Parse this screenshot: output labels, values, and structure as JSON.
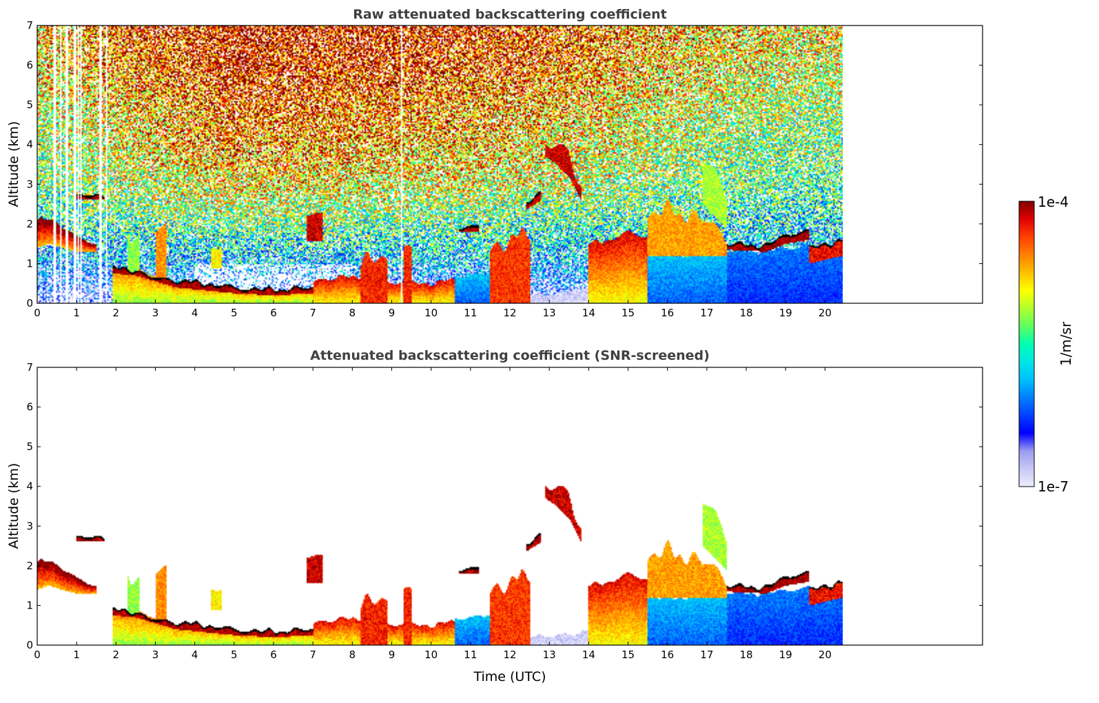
{
  "colors": {
    "colormap": [
      "#ececff",
      "#c8c8f5",
      "#9b9bf0",
      "#0000ff",
      "#0040ff",
      "#0080ff",
      "#00c0ff",
      "#00e5e5",
      "#00ffb0",
      "#60ff60",
      "#b0ff30",
      "#ffff00",
      "#ffc000",
      "#ff8000",
      "#ff4000",
      "#e00000",
      "#800000"
    ],
    "axis": "#000000",
    "title": "#404040",
    "black_layer": "#000000"
  },
  "chart_data": [
    {
      "type": "heatmap",
      "title": "Raw attenuated backscattering coefficient",
      "xlabel": "",
      "ylabel": "Altitude (km)",
      "xlim": [
        0,
        24
      ],
      "ylim": [
        0,
        7
      ],
      "xticks": [
        0,
        1,
        2,
        3,
        4,
        5,
        6,
        7,
        8,
        9,
        10,
        11,
        12,
        13,
        14,
        15,
        16,
        17,
        18,
        19,
        20
      ],
      "yticks": [
        0,
        1,
        2,
        3,
        4,
        5,
        6,
        7
      ],
      "data_extent_x": [
        0,
        20.45
      ],
      "noise_field": {
        "description": "pixel-level noise increasing with altitude",
        "intensity_by_altitude_km": [
          [
            0,
            0.05
          ],
          [
            1,
            0.3
          ],
          [
            2,
            0.45
          ],
          [
            3,
            0.55
          ],
          [
            4,
            0.6
          ],
          [
            5,
            0.65
          ],
          [
            6,
            0.72
          ],
          [
            7,
            0.75
          ]
        ],
        "upper_intensity_boost_by_time": [
          [
            0,
            0.0
          ],
          [
            2,
            0.1
          ],
          [
            5,
            0.22
          ],
          [
            8,
            0.2
          ],
          [
            12,
            0.15
          ],
          [
            14,
            0.1
          ],
          [
            17,
            0.0
          ],
          [
            20.45,
            -0.05
          ]
        ]
      },
      "features": [
        {
          "kind": "boundary_layer",
          "x": [
            0,
            0.3,
            0.6,
            1.0,
            1.5
          ],
          "y_low": [
            1.4,
            1.5,
            1.4,
            1.3,
            1.3
          ],
          "y_high": [
            2.1,
            2.1,
            2.0,
            1.7,
            1.5
          ],
          "intensity": 0.95
        },
        {
          "kind": "cloud_layer",
          "x": [
            1.0,
            1.7
          ],
          "y_low": [
            2.6,
            2.6
          ],
          "y_high": [
            2.75,
            2.75
          ],
          "intensity": 0.97
        },
        {
          "kind": "boundary_layer",
          "x": [
            1.9,
            2.5,
            3.0,
            3.5,
            4.0,
            5.0,
            6.0,
            7.0
          ],
          "y_low": [
            0.0,
            0.0,
            0.0,
            0.0,
            0.0,
            0.0,
            0.0,
            0.0
          ],
          "y_high": [
            0.9,
            0.85,
            0.75,
            0.55,
            0.5,
            0.35,
            0.3,
            0.35
          ],
          "intensity": 0.75
        },
        {
          "kind": "cloud_layer",
          "x": [
            1.9,
            2.5,
            3.0,
            3.5,
            4.0,
            5.0,
            6.0,
            7.0
          ],
          "y_low": [
            0.75,
            0.7,
            0.55,
            0.4,
            0.35,
            0.25,
            0.2,
            0.25
          ],
          "y_high": [
            0.9,
            0.85,
            0.7,
            0.6,
            0.55,
            0.4,
            0.35,
            0.38
          ],
          "intensity": 0.97
        },
        {
          "kind": "plume",
          "x": [
            2.3,
            2.6
          ],
          "y_low": [
            0.0,
            0.0
          ],
          "y_high": [
            1.8,
            1.7
          ],
          "intensity": 0.6
        },
        {
          "kind": "plume",
          "x": [
            3.0,
            3.3
          ],
          "y_low": [
            0.5,
            0.5
          ],
          "y_high": [
            2.0,
            2.0
          ],
          "intensity": 0.8
        },
        {
          "kind": "cloud_blob",
          "x": [
            4.4,
            4.7
          ],
          "y_low": [
            0.9,
            0.9
          ],
          "y_high": [
            1.4,
            1.4
          ],
          "intensity": 0.7
        },
        {
          "kind": "cloud_blob",
          "x": [
            6.85,
            7.25
          ],
          "y_low": [
            1.55,
            1.55
          ],
          "y_high": [
            2.2,
            2.2
          ],
          "intensity": 0.95
        },
        {
          "kind": "boundary_layer",
          "x": [
            7.0,
            8.0,
            9.0,
            10.0,
            10.6
          ],
          "y_low": [
            0.0,
            0.0,
            0.0,
            0.0,
            0.0
          ],
          "y_high": [
            0.5,
            0.7,
            0.5,
            0.5,
            0.6
          ],
          "intensity": 0.85
        },
        {
          "kind": "plume",
          "x": [
            8.2,
            8.9
          ],
          "y_low": [
            0.0,
            0.0
          ],
          "y_high": [
            1.1,
            1.0
          ],
          "intensity": 0.9
        },
        {
          "kind": "plume",
          "x": [
            9.3,
            9.5
          ],
          "y_low": [
            0.0,
            0.0
          ],
          "y_high": [
            1.3,
            1.2
          ],
          "intensity": 0.9
        },
        {
          "kind": "boundary_layer",
          "x": [
            10.6,
            11.0,
            11.6
          ],
          "y_low": [
            0.0,
            0.0,
            0.0
          ],
          "y_high": [
            0.7,
            0.7,
            0.8
          ],
          "intensity": 0.35
        },
        {
          "kind": "cloud_layer",
          "x": [
            10.7,
            11.2
          ],
          "y_low": [
            1.8,
            1.8
          ],
          "y_high": [
            1.95,
            1.95
          ],
          "intensity": 0.97
        },
        {
          "kind": "plume",
          "x": [
            11.5,
            12.5
          ],
          "y_low": [
            0.0,
            0.0
          ],
          "y_high": [
            1.4,
            1.8
          ],
          "intensity": 0.88
        },
        {
          "kind": "cloud_layer",
          "x": [
            12.4,
            12.8
          ],
          "y_low": [
            2.35,
            2.6
          ],
          "y_high": [
            2.55,
            2.85
          ],
          "intensity": 0.96
        },
        {
          "kind": "streak",
          "x": [
            12.9,
            13.2,
            13.5,
            13.8
          ],
          "y_low": [
            3.7,
            3.5,
            3.2,
            2.6
          ],
          "y_high": [
            4.2,
            4.1,
            3.9,
            3.0
          ],
          "intensity": 0.95
        },
        {
          "kind": "boundary_layer",
          "x": [
            12.5,
            13.5,
            14.0
          ],
          "y_low": [
            0.0,
            0.0,
            0.0
          ],
          "y_high": [
            0.25,
            0.3,
            0.4
          ],
          "intensity": 0.05
        },
        {
          "kind": "boundary_layer",
          "x": [
            14.0,
            14.5,
            15.0,
            15.5
          ],
          "y_low": [
            0.0,
            0.0,
            0.0,
            0.0
          ],
          "y_high": [
            1.5,
            1.6,
            1.8,
            1.7
          ],
          "intensity": 0.85
        },
        {
          "kind": "boundary_layer",
          "x": [
            15.5,
            16.0,
            16.5,
            17.0,
            17.5
          ],
          "y_low": [
            0.0,
            0.0,
            0.0,
            0.0,
            0.0
          ],
          "y_high": [
            1.2,
            1.2,
            1.2,
            1.2,
            1.2
          ],
          "intensity": 0.35
        },
        {
          "kind": "plume",
          "x": [
            15.5,
            16.0,
            16.5,
            17.0,
            17.5
          ],
          "y_low": [
            1.2,
            1.2,
            1.2,
            1.2,
            1.2
          ],
          "y_high": [
            2.2,
            2.4,
            2.2,
            2.0,
            1.5
          ],
          "intensity": 0.78
        },
        {
          "kind": "streak",
          "x": [
            16.9,
            17.2,
            17.5
          ],
          "y_low": [
            2.5,
            2.2,
            1.9
          ],
          "y_high": [
            3.6,
            3.2,
            2.6
          ],
          "intensity": 0.62
        },
        {
          "kind": "boundary_layer",
          "x": [
            17.5,
            18.5,
            19.5,
            20.45
          ],
          "y_low": [
            0.0,
            0.0,
            0.0,
            0.0
          ],
          "y_high": [
            1.3,
            1.3,
            1.4,
            1.5
          ],
          "intensity": 0.28
        },
        {
          "kind": "cloud_layer",
          "x": [
            17.5,
            18.5,
            19.0,
            19.6
          ],
          "y_low": [
            1.35,
            1.3,
            1.5,
            1.6
          ],
          "y_high": [
            1.5,
            1.45,
            1.7,
            1.8
          ],
          "intensity": 0.98
        },
        {
          "kind": "cloud_layer",
          "x": [
            19.6,
            20.45
          ],
          "y_low": [
            1.0,
            1.2
          ],
          "y_high": [
            1.4,
            1.6
          ],
          "intensity": 0.92
        },
        {
          "kind": "column_gaps",
          "x": [
            0.45,
            0.6,
            0.75,
            0.95,
            1.05,
            1.1,
            1.6,
            1.75,
            9.25
          ],
          "width_hours": [
            0.05,
            0.04,
            0.04,
            0.05,
            0.03,
            0.04,
            0.05,
            0.04,
            0.05
          ]
        }
      ]
    },
    {
      "type": "heatmap",
      "title": "Attenuated backscattering coefficient (SNR-screened)",
      "xlabel": "Time (UTC)",
      "ylabel": "Altitude (km)",
      "xlim": [
        0,
        24
      ],
      "ylim": [
        0,
        7
      ],
      "xticks": [
        0,
        1,
        2,
        3,
        4,
        5,
        6,
        7,
        8,
        9,
        10,
        11,
        12,
        13,
        14,
        15,
        16,
        17,
        18,
        19,
        20
      ],
      "yticks": [
        0,
        1,
        2,
        3,
        4,
        5,
        6,
        7
      ],
      "data_extent_x": [
        0,
        20.45
      ],
      "screening": "noise removed; only signal features shown",
      "black_layer_tops": true
    }
  ],
  "colorbar": {
    "label": "1/m/sr",
    "max_label": "1e-4",
    "min_label": "1e-7",
    "scale": "log",
    "range": [
      1e-07,
      0.0001
    ]
  }
}
